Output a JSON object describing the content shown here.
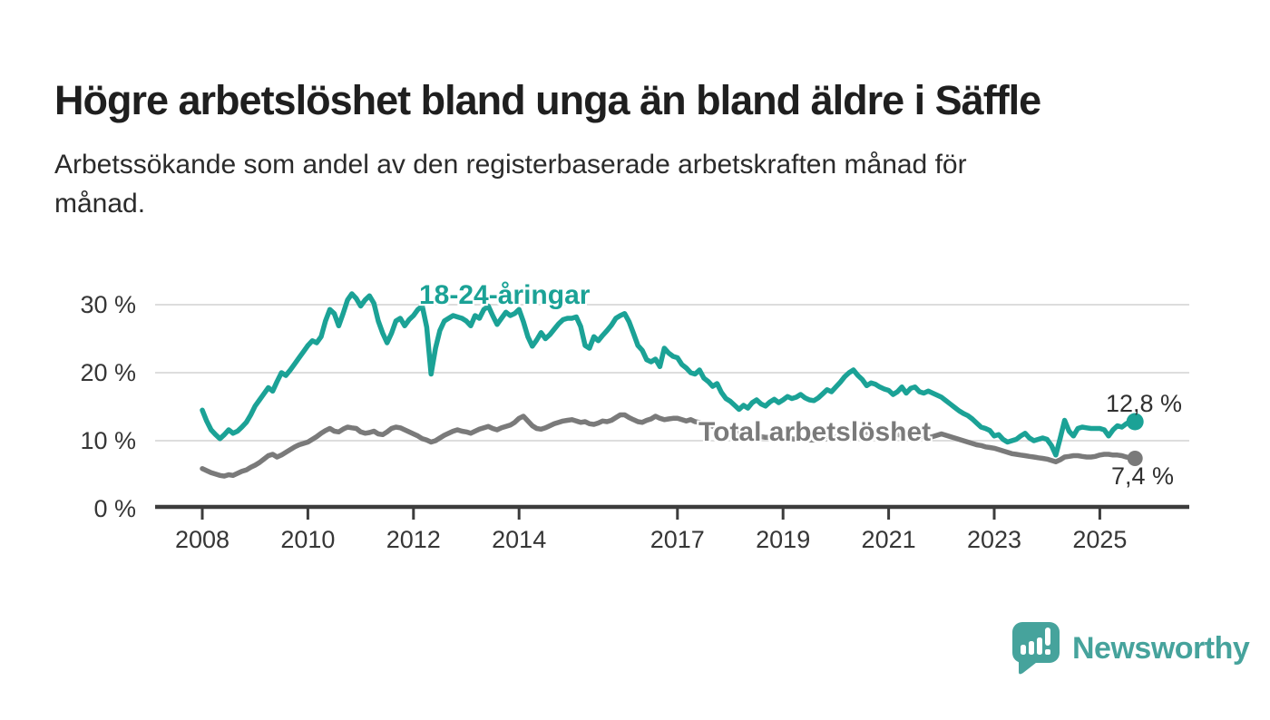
{
  "header": {
    "title": "Högre arbetslöshet bland unga än bland äldre i Säffle",
    "subtitle_lines": [
      "Arbetssökande som andel av den registerbaserade arbetskraften månad för",
      "månad."
    ]
  },
  "labels": {
    "young_series": "18-24-åringar",
    "total_series": "Total arbetslöshet",
    "young_end_value": "12,8 %",
    "total_end_value": "7,4 %"
  },
  "branding": {
    "logo_text": "Newsworthy"
  },
  "colors": {
    "young_line": "#1BA296",
    "total_line": "#7A7A7A",
    "grid": "#DDDDDD",
    "axis": "#3C3C3C",
    "tick_text": "#363636",
    "title_text": "#1F1F1F",
    "logo": "#46A39C",
    "background": "#FFFFFF"
  },
  "chart_data": {
    "type": "line",
    "title": "Högre arbetslöshet bland unga än bland äldre i Säffle",
    "subtitle": "Arbetssökande som andel av den registerbaserade arbetskraften månad för månad.",
    "unit": "%",
    "frequency": "monthly",
    "x_start": "2008-01",
    "x_end": "2025-09",
    "x_tick_years": [
      2008,
      2010,
      2012,
      2014,
      2017,
      2019,
      2021,
      2023,
      2025
    ],
    "x_tick_labels": [
      "2008",
      "2010",
      "2012",
      "2014",
      "2017",
      "2019",
      "2021",
      "2023",
      "2025"
    ],
    "y_ticks": [
      0,
      10,
      20,
      30
    ],
    "y_tick_labels": [
      "0 %",
      "10 %",
      "20 %",
      "30 %"
    ],
    "y_gridlines": [
      10,
      20,
      30
    ],
    "ylim": [
      0,
      33
    ],
    "grid": true,
    "legend_position": "inline-labels",
    "series": [
      {
        "name": "18-24-åringar",
        "color": "#1BA296",
        "end_label": "12,8 %",
        "last_value": 12.8,
        "values": [
          14.5,
          12.9,
          11.6,
          10.9,
          10.3,
          10.9,
          11.6,
          11.1,
          11.4,
          12.0,
          12.7,
          13.8,
          15.1,
          16.0,
          16.9,
          17.8,
          17.3,
          18.7,
          20.0,
          19.6,
          20.4,
          21.3,
          22.2,
          23.1,
          24.0,
          24.7,
          24.4,
          25.3,
          27.6,
          29.3,
          28.7,
          26.9,
          28.7,
          30.7,
          31.6,
          30.9,
          29.8,
          30.7,
          31.3,
          30.2,
          27.6,
          25.8,
          24.4,
          25.8,
          27.6,
          28.0,
          26.9,
          27.8,
          28.4,
          29.3,
          29.8,
          26.7,
          19.8,
          23.6,
          26.2,
          27.6,
          28.0,
          28.4,
          28.2,
          28.0,
          27.6,
          26.9,
          28.4,
          28.0,
          29.3,
          29.8,
          28.4,
          27.1,
          28.0,
          28.9,
          28.4,
          28.7,
          29.3,
          27.5,
          25.3,
          23.9,
          24.8,
          25.9,
          25.0,
          25.6,
          26.4,
          27.2,
          27.8,
          28.0,
          28.0,
          28.2,
          26.8,
          24.0,
          23.6,
          25.3,
          24.7,
          25.5,
          26.2,
          27.0,
          28.0,
          28.4,
          28.7,
          27.5,
          25.8,
          24.0,
          23.3,
          21.9,
          21.6,
          22.0,
          20.9,
          23.6,
          22.9,
          22.4,
          22.2,
          21.2,
          20.7,
          20.0,
          19.8,
          20.4,
          19.2,
          18.7,
          18.0,
          18.4,
          17.1,
          16.2,
          15.8,
          15.2,
          14.6,
          15.2,
          14.8,
          15.6,
          16.0,
          15.4,
          15.1,
          15.7,
          16.1,
          15.6,
          16.0,
          16.5,
          16.2,
          16.4,
          16.8,
          16.3,
          16.0,
          15.9,
          16.3,
          16.9,
          17.5,
          17.2,
          17.9,
          18.6,
          19.4,
          20.0,
          20.4,
          19.6,
          19.0,
          18.1,
          18.5,
          18.3,
          17.9,
          17.6,
          17.4,
          16.8,
          17.2,
          17.9,
          17.0,
          17.7,
          17.9,
          17.2,
          17.0,
          17.3,
          17.0,
          16.7,
          16.4,
          15.9,
          15.4,
          14.9,
          14.4,
          14.0,
          13.7,
          13.2,
          12.6,
          12.0,
          11.8,
          11.5,
          10.7,
          10.9,
          10.2,
          9.8,
          10.0,
          10.2,
          10.7,
          11.1,
          10.4,
          10.0,
          10.2,
          10.4,
          10.2,
          9.3,
          7.9,
          10.4,
          13.0,
          11.4,
          10.7,
          11.8,
          12.0,
          11.9,
          11.8,
          11.8,
          11.8,
          11.6,
          10.7,
          11.6,
          12.2,
          12.0,
          12.5,
          12.9,
          12.8
        ]
      },
      {
        "name": "Total arbetslöshet",
        "color": "#7A7A7A",
        "end_label": "7,4 %",
        "last_value": 7.4,
        "values": [
          5.9,
          5.6,
          5.3,
          5.1,
          4.9,
          4.8,
          5.0,
          4.9,
          5.2,
          5.5,
          5.7,
          6.1,
          6.4,
          6.8,
          7.3,
          7.8,
          8.0,
          7.6,
          7.9,
          8.3,
          8.7,
          9.1,
          9.4,
          9.6,
          9.8,
          10.2,
          10.6,
          11.1,
          11.5,
          11.8,
          11.4,
          11.3,
          11.7,
          12.0,
          11.9,
          11.8,
          11.3,
          11.1,
          11.2,
          11.4,
          11.0,
          10.9,
          11.3,
          11.8,
          12.0,
          11.9,
          11.6,
          11.3,
          11.0,
          10.7,
          10.3,
          10.1,
          9.8,
          10.0,
          10.4,
          10.8,
          11.1,
          11.4,
          11.6,
          11.4,
          11.3,
          11.1,
          11.4,
          11.7,
          11.9,
          12.1,
          11.8,
          11.6,
          11.9,
          12.1,
          12.3,
          12.7,
          13.3,
          13.6,
          12.9,
          12.2,
          11.8,
          11.7,
          11.9,
          12.2,
          12.5,
          12.7,
          12.9,
          13.0,
          13.1,
          12.9,
          12.7,
          12.8,
          12.5,
          12.4,
          12.6,
          12.9,
          12.8,
          13.0,
          13.4,
          13.8,
          13.8,
          13.4,
          13.1,
          12.8,
          12.7,
          13.0,
          13.2,
          13.6,
          13.3,
          13.1,
          13.2,
          13.3,
          13.3,
          13.1,
          12.9,
          13.1,
          12.8,
          12.7,
          12.5,
          12.3,
          12.1,
          11.9,
          11.8,
          11.7,
          11.6,
          11.4,
          11.2,
          11.0,
          10.9,
          10.8,
          10.7,
          10.6,
          10.5,
          10.5,
          10.4,
          10.4,
          10.4,
          10.3,
          10.3,
          10.2,
          10.2,
          10.1,
          10.1,
          10.1,
          10.2,
          10.2,
          10.3,
          10.4,
          10.5,
          10.7,
          11.0,
          11.3,
          11.5,
          11.4,
          11.3,
          11.2,
          11.2,
          11.1,
          11.1,
          11.0,
          11.0,
          10.9,
          10.9,
          10.8,
          10.8,
          10.7,
          10.7,
          10.6,
          10.6,
          10.5,
          10.6,
          10.8,
          11.0,
          10.8,
          10.6,
          10.4,
          10.2,
          10.0,
          9.8,
          9.6,
          9.4,
          9.3,
          9.1,
          9.0,
          8.9,
          8.7,
          8.5,
          8.3,
          8.1,
          8.0,
          7.9,
          7.8,
          7.7,
          7.6,
          7.5,
          7.4,
          7.3,
          7.1,
          6.9,
          7.2,
          7.6,
          7.7,
          7.8,
          7.8,
          7.7,
          7.6,
          7.6,
          7.7,
          7.9,
          8.0,
          8.0,
          7.9,
          7.9,
          7.8,
          7.6,
          7.5,
          7.4
        ]
      }
    ]
  }
}
